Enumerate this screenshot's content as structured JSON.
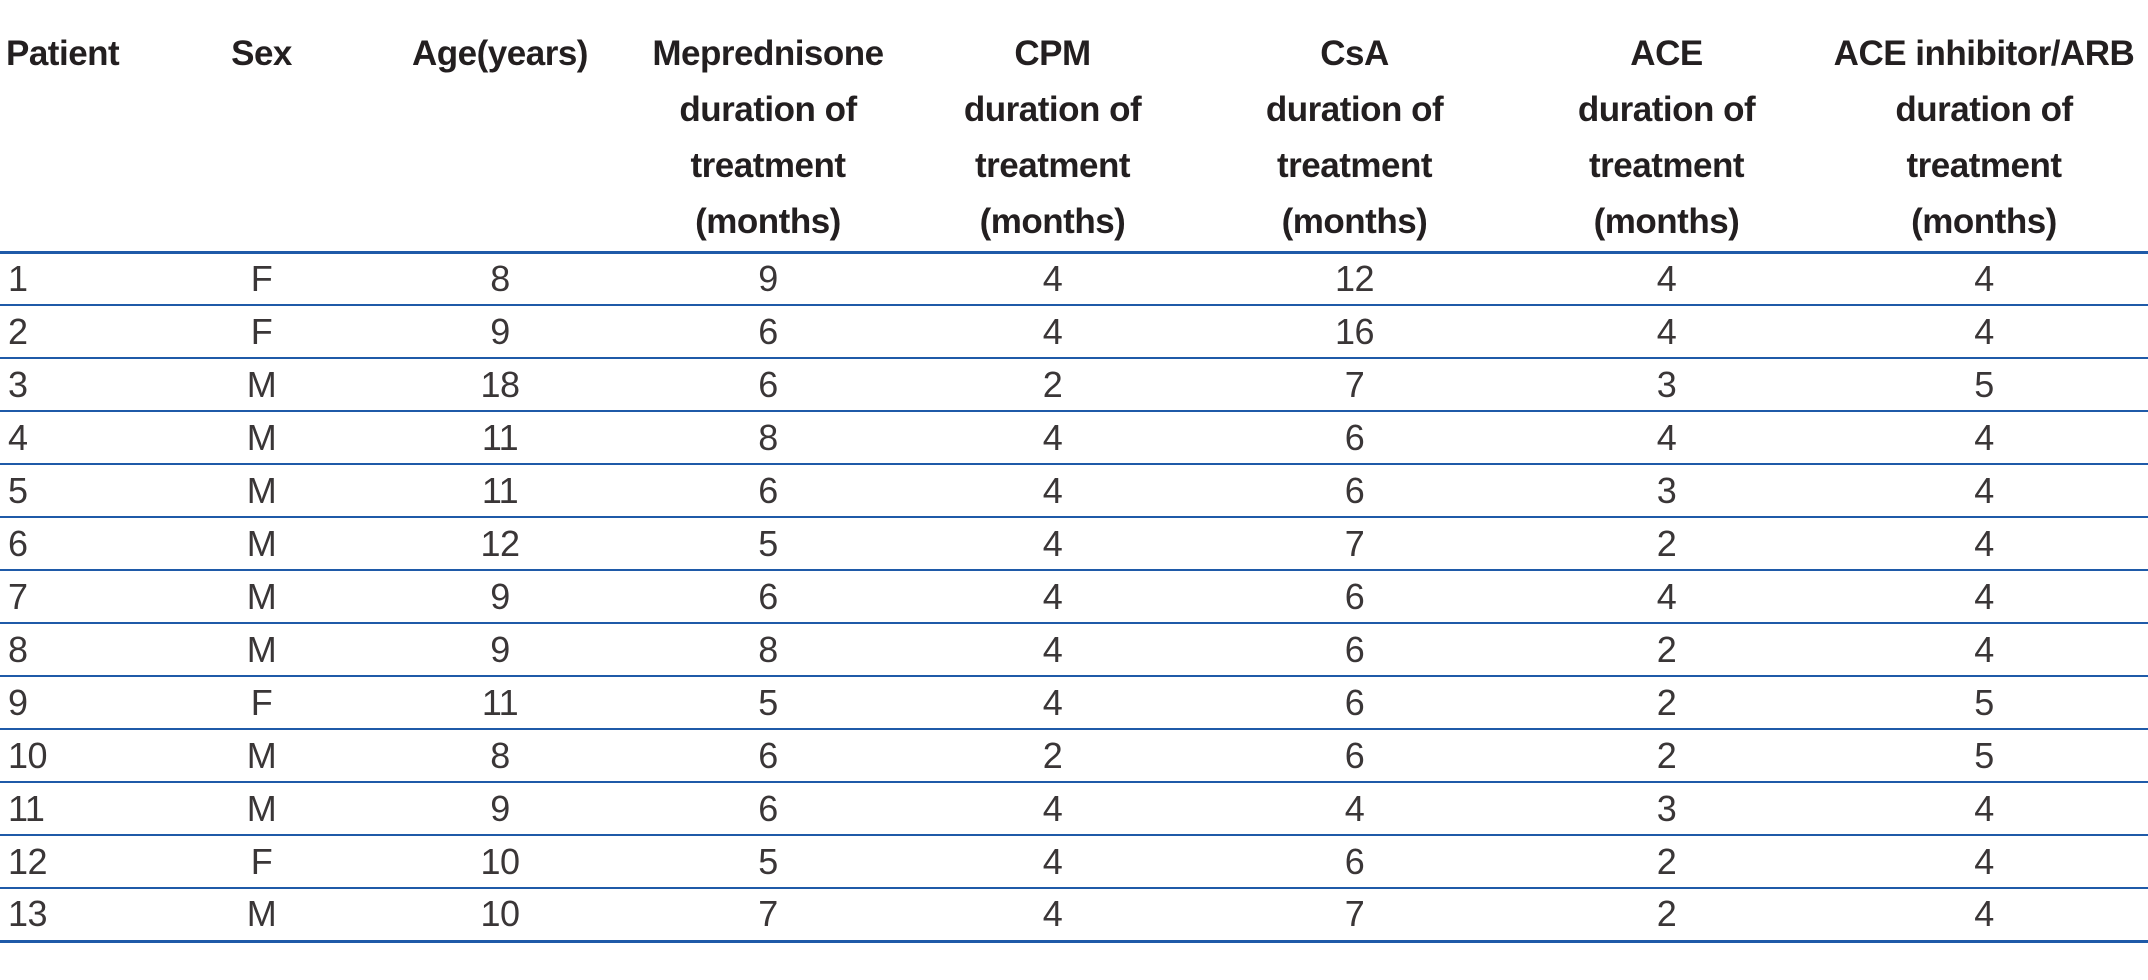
{
  "colors": {
    "rule_blue": "#1f5aa8",
    "header_text": "#231f20",
    "body_text": "#3a3637",
    "background": "#ffffff"
  },
  "table": {
    "columns": [
      {
        "id": "patient",
        "align": "left",
        "label": "Patient",
        "label_lines": [
          "Patient"
        ]
      },
      {
        "id": "sex",
        "align": "center",
        "label": "Sex",
        "label_lines": [
          "Sex"
        ]
      },
      {
        "id": "age",
        "align": "center",
        "label": "Age(years)",
        "label_lines": [
          "Age(years)"
        ]
      },
      {
        "id": "meprednisone-duration",
        "align": "center",
        "label": "Meprednisone duration of treatment (months)",
        "label_lines": [
          "Meprednisone",
          "duration of",
          "treatment",
          "(months)"
        ]
      },
      {
        "id": "cpm-duration",
        "align": "center",
        "label": "CPM duration of treatment (months)",
        "label_lines": [
          "CPM",
          "duration of",
          "treatment",
          "(months)"
        ]
      },
      {
        "id": "csa-duration",
        "align": "center",
        "label": "CsA duration of treatment (months)",
        "label_lines": [
          "CsA",
          "duration of",
          "treatment",
          "(months)"
        ]
      },
      {
        "id": "ace-duration",
        "align": "center",
        "label": "ACE duration of treatment (months)",
        "label_lines": [
          "ACE",
          "duration of",
          "treatment",
          "(months)"
        ]
      },
      {
        "id": "ace-inhibitor-arb-duration",
        "align": "center",
        "label": "ACE inhibitor/ARB duration of treatment (months)",
        "label_lines": [
          "ACE inhibitor/ARB",
          "duration of",
          "treatment",
          "(months)"
        ]
      }
    ],
    "rows": [
      [
        "1",
        "F",
        "8",
        "9",
        "4",
        "12",
        "4",
        "4"
      ],
      [
        "2",
        "F",
        "9",
        "6",
        "4",
        "16",
        "4",
        "4"
      ],
      [
        "3",
        "M",
        "18",
        "6",
        "2",
        "7",
        "3",
        "5"
      ],
      [
        "4",
        "M",
        "11",
        "8",
        "4",
        "6",
        "4",
        "4"
      ],
      [
        "5",
        "M",
        "11",
        "6",
        "4",
        "6",
        "3",
        "4"
      ],
      [
        "6",
        "M",
        "12",
        "5",
        "4",
        "7",
        "2",
        "4"
      ],
      [
        "7",
        "M",
        "9",
        "6",
        "4",
        "6",
        "4",
        "4"
      ],
      [
        "8",
        "M",
        "9",
        "8",
        "4",
        "6",
        "2",
        "4"
      ],
      [
        "9",
        "F",
        "11",
        "5",
        "4",
        "6",
        "2",
        "5"
      ],
      [
        "10",
        "M",
        "8",
        "6",
        "2",
        "6",
        "2",
        "5"
      ],
      [
        "11",
        "M",
        "9",
        "6",
        "4",
        "4",
        "3",
        "4"
      ],
      [
        "12",
        "F",
        "10",
        "5",
        "4",
        "6",
        "2",
        "4"
      ],
      [
        "13",
        "M",
        "10",
        "7",
        "4",
        "7",
        "2",
        "4"
      ]
    ]
  }
}
